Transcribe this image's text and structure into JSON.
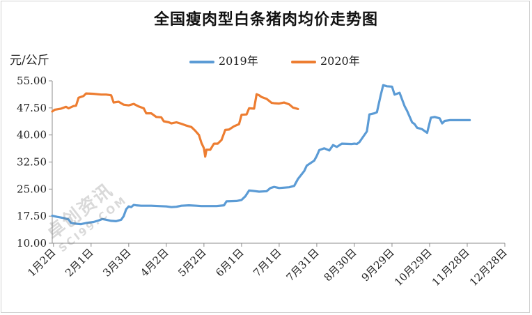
{
  "chart_data": {
    "type": "line",
    "title": "全国瘦肉型白条猪肉均价走势图",
    "ylabel": "元/公斤",
    "xlabel": "",
    "ylim": [
      10,
      55
    ],
    "yticks": [
      "55.00",
      "47.50",
      "40.00",
      "32.50",
      "25.00",
      "17.50",
      "10.00"
    ],
    "ytick_values": [
      55,
      47.5,
      40,
      32.5,
      25,
      17.5,
      10
    ],
    "xlim": [
      1,
      362
    ],
    "xticks": [
      "1月2日",
      "2月1日",
      "3月3日",
      "4月2日",
      "5月2日",
      "6月1日",
      "7月1日",
      "7月31日",
      "8月30日",
      "9月29日",
      "10月29日",
      "11月28日",
      "12月28日"
    ],
    "xtick_days": [
      2,
      32,
      62,
      92,
      122,
      152,
      182,
      212,
      242,
      272,
      302,
      332,
      362
    ],
    "legend_position": "top",
    "grid": false,
    "series": [
      {
        "name": "2019年",
        "color": "#5b9bd5",
        "points": [
          [
            1,
            17.6
          ],
          [
            5,
            17.3
          ],
          [
            10,
            17.0
          ],
          [
            14,
            16.6
          ],
          [
            16,
            15.6
          ],
          [
            20,
            15.4
          ],
          [
            24,
            15.3
          ],
          [
            28,
            15.6
          ],
          [
            34,
            15.9
          ],
          [
            38,
            16.3
          ],
          [
            41,
            16.7
          ],
          [
            44,
            16.5
          ],
          [
            48,
            16.2
          ],
          [
            52,
            16.1
          ],
          [
            56,
            16.5
          ],
          [
            58,
            17.5
          ],
          [
            60,
            19.4
          ],
          [
            62,
            20.2
          ],
          [
            64,
            20.0
          ],
          [
            66,
            20.6
          ],
          [
            68,
            20.5
          ],
          [
            72,
            20.4
          ],
          [
            80,
            20.4
          ],
          [
            86,
            20.3
          ],
          [
            92,
            20.2
          ],
          [
            96,
            20.0
          ],
          [
            100,
            20.1
          ],
          [
            104,
            20.4
          ],
          [
            110,
            20.5
          ],
          [
            116,
            20.4
          ],
          [
            120,
            20.3
          ],
          [
            132,
            20.3
          ],
          [
            138,
            20.5
          ],
          [
            140,
            21.6
          ],
          [
            148,
            21.7
          ],
          [
            152,
            22.0
          ],
          [
            155,
            23.0
          ],
          [
            158,
            24.6
          ],
          [
            161,
            24.5
          ],
          [
            166,
            24.3
          ],
          [
            172,
            24.4
          ],
          [
            175,
            25.3
          ],
          [
            178,
            25.6
          ],
          [
            182,
            25.3
          ],
          [
            190,
            25.5
          ],
          [
            194,
            25.9
          ],
          [
            197,
            27.8
          ],
          [
            202,
            30.0
          ],
          [
            204,
            31.5
          ],
          [
            210,
            32.9
          ],
          [
            212,
            34.2
          ],
          [
            214,
            35.8
          ],
          [
            218,
            36.3
          ],
          [
            222,
            35.7
          ],
          [
            225,
            37.2
          ],
          [
            228,
            36.7
          ],
          [
            232,
            37.6
          ],
          [
            240,
            37.5
          ],
          [
            242,
            37.6
          ],
          [
            244,
            37.5
          ],
          [
            246,
            38.0
          ],
          [
            252,
            41.0
          ],
          [
            254,
            45.7
          ],
          [
            258,
            46.0
          ],
          [
            260,
            46.3
          ],
          [
            263,
            51.0
          ],
          [
            265,
            53.8
          ],
          [
            268,
            53.5
          ],
          [
            272,
            53.4
          ],
          [
            274,
            51.2
          ],
          [
            278,
            51.7
          ],
          [
            282,
            48.0
          ],
          [
            284,
            46.7
          ],
          [
            288,
            43.5
          ],
          [
            290,
            43.0
          ],
          [
            292,
            42.0
          ],
          [
            296,
            41.6
          ],
          [
            300,
            40.6
          ],
          [
            303,
            44.8
          ],
          [
            306,
            45.0
          ],
          [
            310,
            44.6
          ],
          [
            312,
            43.2
          ],
          [
            314,
            43.9
          ],
          [
            318,
            44.1
          ],
          [
            330,
            44.1
          ],
          [
            334,
            44.1
          ]
        ]
      },
      {
        "name": "2020年",
        "color": "#ed7d31",
        "points": [
          [
            1,
            46.5
          ],
          [
            3,
            47.0
          ],
          [
            8,
            47.3
          ],
          [
            12,
            47.8
          ],
          [
            14,
            47.4
          ],
          [
            18,
            48.0
          ],
          [
            20,
            48.1
          ],
          [
            22,
            50.3
          ],
          [
            26,
            50.8
          ],
          [
            28,
            51.5
          ],
          [
            34,
            51.4
          ],
          [
            40,
            51.2
          ],
          [
            44,
            51.2
          ],
          [
            48,
            51.0
          ],
          [
            50,
            49.0
          ],
          [
            54,
            49.2
          ],
          [
            58,
            48.4
          ],
          [
            62,
            48.2
          ],
          [
            66,
            48.6
          ],
          [
            70,
            47.9
          ],
          [
            74,
            47.4
          ],
          [
            76,
            46.0
          ],
          [
            80,
            46.0
          ],
          [
            84,
            45.0
          ],
          [
            88,
            44.9
          ],
          [
            90,
            43.8
          ],
          [
            94,
            43.5
          ],
          [
            96,
            43.2
          ],
          [
            100,
            43.5
          ],
          [
            104,
            43.1
          ],
          [
            108,
            42.6
          ],
          [
            112,
            42.2
          ],
          [
            115,
            41.2
          ],
          [
            118,
            40.0
          ],
          [
            120,
            37.8
          ],
          [
            122,
            36.3
          ],
          [
            123,
            34.0
          ],
          [
            124,
            35.9
          ],
          [
            127,
            35.9
          ],
          [
            130,
            37.6
          ],
          [
            133,
            37.6
          ],
          [
            136,
            38.6
          ],
          [
            139,
            41.4
          ],
          [
            142,
            41.5
          ],
          [
            146,
            42.4
          ],
          [
            150,
            43.0
          ],
          [
            152,
            45.6
          ],
          [
            156,
            45.7
          ],
          [
            158,
            47.4
          ],
          [
            162,
            47.3
          ],
          [
            164,
            51.3
          ],
          [
            166,
            51.0
          ],
          [
            168,
            50.5
          ],
          [
            172,
            50.0
          ],
          [
            176,
            48.9
          ],
          [
            178,
            48.8
          ],
          [
            182,
            48.7
          ],
          [
            186,
            49.0
          ],
          [
            190,
            48.5
          ],
          [
            193,
            47.6
          ],
          [
            197,
            47.2
          ]
        ]
      }
    ]
  },
  "watermark": {
    "text": "卓创资讯",
    "sub": "SCI99.COM"
  }
}
